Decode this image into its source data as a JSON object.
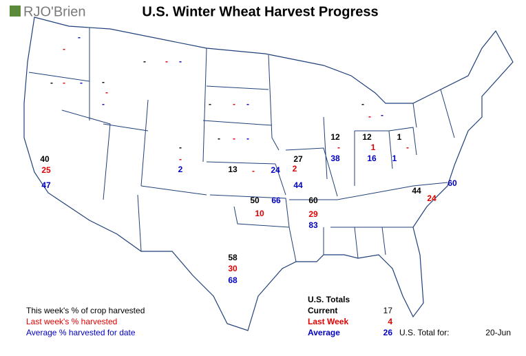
{
  "header": {
    "logo": "RJO'Brien",
    "title": "U.S. Winter Wheat Harvest Progress"
  },
  "states": [
    {
      "last_week": "-",
      "average": "-"
    },
    {
      "current": "-",
      "last_week": "-",
      "average": "-"
    },
    {
      "current": "-",
      "last_week": "-",
      "average": "-"
    },
    {
      "current": "-",
      "last_week": "-",
      "average": "-"
    },
    {
      "current": "-",
      "last_week": "-",
      "average": "-"
    },
    {
      "current": "-",
      "last_week": "-",
      "average": "-"
    },
    {
      "current": "-",
      "last_week": "-",
      "average": 2
    },
    {
      "current": 40,
      "last_week": 25,
      "average": 47
    },
    {
      "current": 13,
      "last_week": "-",
      "average": 24
    },
    {
      "current": 27,
      "last_week": 2,
      "average": 44
    },
    {
      "current": 12,
      "last_week": "-",
      "average": 38
    },
    {
      "current": 12,
      "last_week": 1,
      "average": 16
    },
    {
      "current": 1,
      "last_week": "-",
      "average": 1
    },
    {
      "current": "-",
      "last_week": "-",
      "average": "-"
    },
    {
      "current": 50,
      "last_week": 10,
      "average": 66
    },
    {
      "current": 60,
      "last_week": 29,
      "average": 83
    },
    {
      "current": 58,
      "last_week": 30,
      "average": 68
    },
    {
      "current": 44,
      "last_week": 24,
      "average": 60
    }
  ],
  "legend": {
    "current": "This week's % of crop harvested",
    "last_week": "Last week's % harvested",
    "average": "Average % harvested for date"
  },
  "totals": {
    "title": "U.S. Totals",
    "rows": [
      {
        "label": "Current",
        "value": 17
      },
      {
        "label": "Last Week",
        "value": 4
      },
      {
        "label": "Average",
        "value": 26
      }
    ],
    "date_label": "U.S. Total for:",
    "date": "20-Jun"
  }
}
